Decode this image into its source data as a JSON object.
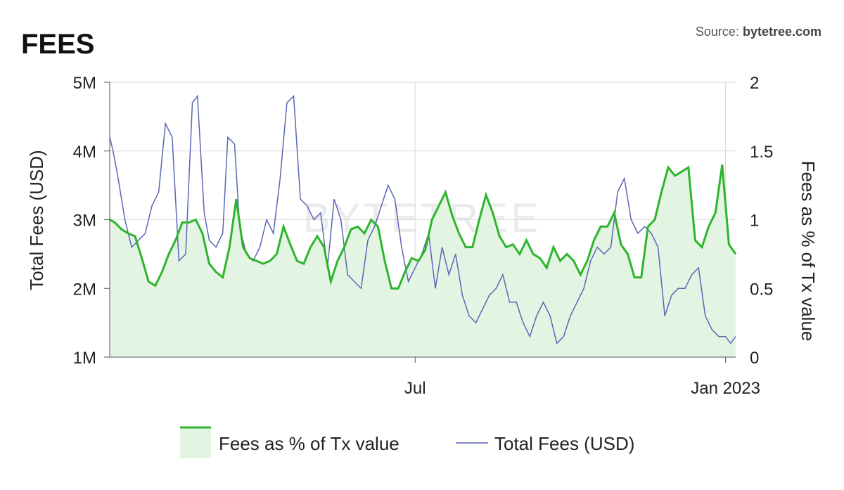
{
  "header": {
    "title": "FEES",
    "source_prefix": "Source: ",
    "source_name": "bytetree.com"
  },
  "watermark": "BYTETREE",
  "colors": {
    "green_line": "#2db52d",
    "green_fill": "#e3f5e2",
    "blue_line": "#5a66b8",
    "grid": "#d9d9d9",
    "axis": "#555555"
  },
  "chart_data": {
    "type": "line",
    "x_labels": [
      "Jul",
      "Jan 2023"
    ],
    "xlim": [
      "2022-01-01",
      "2023-01-07"
    ],
    "y_left": {
      "label": "Total Fees (USD)",
      "ticks": [
        1000000,
        2000000,
        3000000,
        4000000,
        5000000
      ],
      "tick_labels": [
        "1M",
        "2M",
        "3M",
        "4M",
        "5M"
      ],
      "ylim": [
        1000000,
        5000000
      ]
    },
    "y_right": {
      "label": "Fees as % of Tx value",
      "ticks": [
        0,
        0.5,
        1,
        1.5,
        2
      ],
      "tick_labels": [
        "0",
        "0.5",
        "1",
        "1.5",
        "2"
      ],
      "ylim": [
        0,
        2
      ]
    },
    "legend_position": "bottom",
    "series": [
      {
        "name": "Fees as % of Tx value",
        "axis": "right",
        "style": "area",
        "x": [
          "2022-01-01",
          "2022-01-04",
          "2022-01-08",
          "2022-01-12",
          "2022-01-16",
          "2022-01-20",
          "2022-01-24",
          "2022-01-28",
          "2022-02-01",
          "2022-02-05",
          "2022-02-09",
          "2022-02-13",
          "2022-02-17",
          "2022-02-21",
          "2022-02-25",
          "2022-03-01",
          "2022-03-05",
          "2022-03-09",
          "2022-03-13",
          "2022-03-17",
          "2022-03-21",
          "2022-03-25",
          "2022-03-29",
          "2022-04-02",
          "2022-04-06",
          "2022-04-10",
          "2022-04-14",
          "2022-04-18",
          "2022-04-22",
          "2022-04-26",
          "2022-04-30",
          "2022-05-04",
          "2022-05-08",
          "2022-05-12",
          "2022-05-16",
          "2022-05-20",
          "2022-05-24",
          "2022-05-28",
          "2022-06-01",
          "2022-06-05",
          "2022-06-09",
          "2022-06-13",
          "2022-06-17",
          "2022-06-21",
          "2022-06-25",
          "2022-06-29",
          "2022-07-03",
          "2022-07-07",
          "2022-07-11",
          "2022-07-15",
          "2022-07-19",
          "2022-07-23",
          "2022-07-27",
          "2022-07-31",
          "2022-08-04",
          "2022-08-08",
          "2022-08-12",
          "2022-08-16",
          "2022-08-20",
          "2022-08-24",
          "2022-08-28",
          "2022-09-01",
          "2022-09-05",
          "2022-09-09",
          "2022-09-13",
          "2022-09-17",
          "2022-09-21",
          "2022-09-25",
          "2022-09-29",
          "2022-10-03",
          "2022-10-07",
          "2022-10-11",
          "2022-10-15",
          "2022-10-19",
          "2022-10-23",
          "2022-10-27",
          "2022-10-31",
          "2022-11-04",
          "2022-11-08",
          "2022-11-12",
          "2022-11-16",
          "2022-11-20",
          "2022-11-24",
          "2022-11-28",
          "2022-12-02",
          "2022-12-06",
          "2022-12-10",
          "2022-12-14",
          "2022-12-18",
          "2022-12-22",
          "2022-12-26",
          "2022-12-30",
          "2023-01-03",
          "2023-01-07"
        ],
        "y": [
          1.0,
          0.98,
          0.93,
          0.9,
          0.88,
          0.72,
          0.55,
          0.52,
          0.62,
          0.75,
          0.85,
          0.98,
          0.98,
          1.0,
          0.9,
          0.68,
          0.62,
          0.58,
          0.8,
          1.15,
          0.8,
          0.72,
          0.7,
          0.68,
          0.7,
          0.75,
          0.95,
          0.82,
          0.7,
          0.68,
          0.8,
          0.88,
          0.8,
          0.55,
          0.7,
          0.8,
          0.93,
          0.95,
          0.9,
          1.0,
          0.95,
          0.7,
          0.5,
          0.5,
          0.62,
          0.72,
          0.7,
          0.78,
          1.0,
          1.1,
          1.2,
          1.03,
          0.9,
          0.8,
          0.8,
          1.0,
          1.18,
          1.05,
          0.88,
          0.8,
          0.82,
          0.75,
          0.85,
          0.75,
          0.72,
          0.65,
          0.8,
          0.7,
          0.75,
          0.7,
          0.6,
          0.7,
          0.85,
          0.95,
          0.95,
          1.05,
          0.82,
          0.75,
          0.58,
          0.58,
          0.95,
          1.0,
          1.2,
          1.38,
          1.32,
          1.35,
          1.38,
          0.85,
          0.8,
          0.95,
          1.05,
          1.4,
          0.82,
          0.75
        ]
      },
      {
        "name": "Total Fees (USD)",
        "axis": "left",
        "style": "line",
        "x": [
          "2022-01-01",
          "2022-01-03",
          "2022-01-06",
          "2022-01-10",
          "2022-01-14",
          "2022-01-18",
          "2022-01-22",
          "2022-01-26",
          "2022-01-30",
          "2022-02-03",
          "2022-02-07",
          "2022-02-11",
          "2022-02-15",
          "2022-02-19",
          "2022-02-22",
          "2022-02-26",
          "2022-03-01",
          "2022-03-05",
          "2022-03-09",
          "2022-03-12",
          "2022-03-16",
          "2022-03-19",
          "2022-03-23",
          "2022-03-27",
          "2022-03-31",
          "2022-04-04",
          "2022-04-08",
          "2022-04-12",
          "2022-04-16",
          "2022-04-20",
          "2022-04-24",
          "2022-04-28",
          "2022-05-02",
          "2022-05-06",
          "2022-05-10",
          "2022-05-14",
          "2022-05-18",
          "2022-05-22",
          "2022-05-26",
          "2022-05-30",
          "2022-06-03",
          "2022-06-07",
          "2022-06-11",
          "2022-06-15",
          "2022-06-19",
          "2022-06-23",
          "2022-06-27",
          "2022-07-01",
          "2022-07-05",
          "2022-07-09",
          "2022-07-13",
          "2022-07-17",
          "2022-07-21",
          "2022-07-25",
          "2022-07-29",
          "2022-08-02",
          "2022-08-06",
          "2022-08-10",
          "2022-08-14",
          "2022-08-18",
          "2022-08-22",
          "2022-08-26",
          "2022-08-30",
          "2022-09-03",
          "2022-09-07",
          "2022-09-11",
          "2022-09-15",
          "2022-09-19",
          "2022-09-23",
          "2022-09-27",
          "2022-10-01",
          "2022-10-05",
          "2022-10-09",
          "2022-10-13",
          "2022-10-17",
          "2022-10-21",
          "2022-10-25",
          "2022-10-29",
          "2022-11-02",
          "2022-11-06",
          "2022-11-10",
          "2022-11-14",
          "2022-11-18",
          "2022-11-22",
          "2022-11-26",
          "2022-11-30",
          "2022-12-04",
          "2022-12-08",
          "2022-12-12",
          "2022-12-16",
          "2022-12-20",
          "2022-12-24",
          "2022-12-28",
          "2023-01-01",
          "2023-01-04",
          "2023-01-07"
        ],
        "y": [
          4200000,
          4000000,
          3600000,
          3000000,
          2600000,
          2700000,
          2800000,
          3200000,
          3400000,
          4400000,
          4200000,
          2400000,
          2500000,
          4700000,
          4800000,
          3100000,
          2700000,
          2600000,
          2800000,
          4200000,
          4100000,
          2900000,
          2500000,
          2400000,
          2600000,
          3000000,
          2800000,
          3600000,
          4700000,
          4800000,
          3300000,
          3200000,
          3000000,
          3100000,
          2300000,
          3300000,
          3000000,
          2200000,
          2100000,
          2000000,
          2700000,
          2900000,
          3200000,
          3500000,
          3300000,
          2600000,
          2100000,
          2300000,
          2500000,
          2800000,
          2000000,
          2600000,
          2200000,
          2500000,
          1900000,
          1600000,
          1500000,
          1700000,
          1900000,
          2000000,
          2200000,
          1800000,
          1800000,
          1500000,
          1300000,
          1600000,
          1800000,
          1600000,
          1200000,
          1300000,
          1600000,
          1800000,
          2000000,
          2400000,
          2600000,
          2500000,
          2600000,
          3400000,
          3600000,
          3000000,
          2800000,
          2900000,
          2800000,
          2600000,
          1600000,
          1900000,
          2000000,
          2000000,
          2200000,
          2300000,
          1600000,
          1400000,
          1300000,
          1300000,
          1200000,
          1300000
        ]
      }
    ]
  }
}
